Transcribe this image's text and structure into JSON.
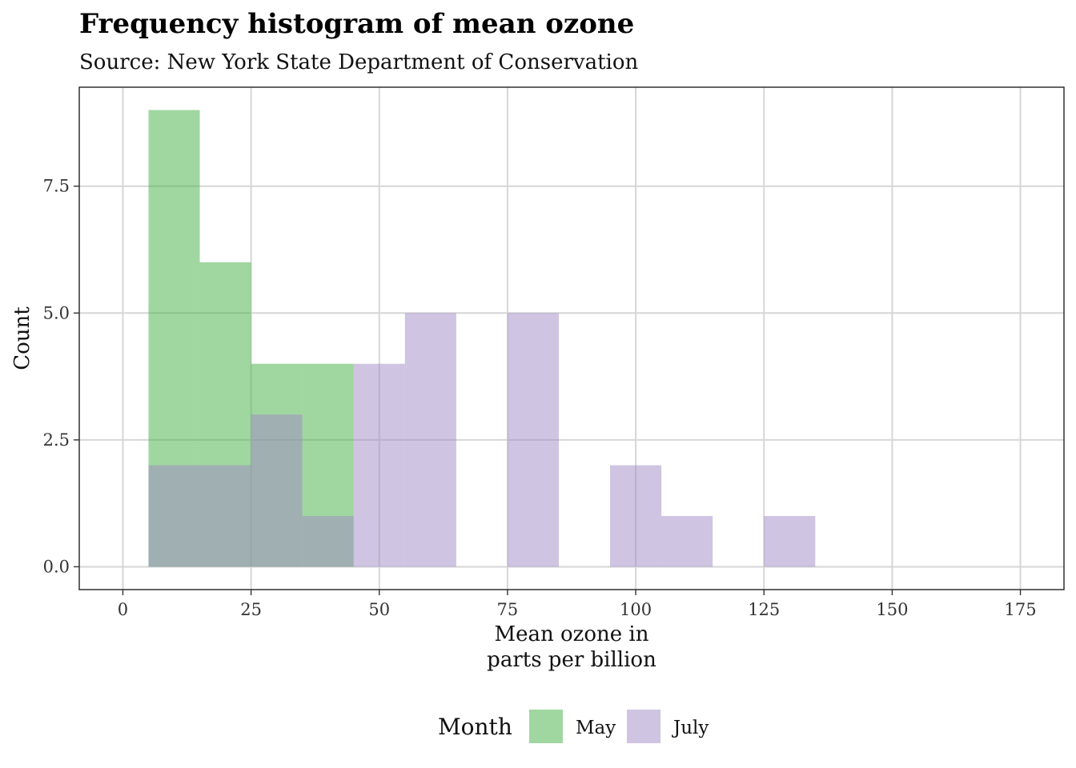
{
  "chart_data": {
    "type": "bar",
    "subtype": "histogram",
    "title": "Frequency histogram of mean ozone",
    "subtitle": "Source: New York State Department of Conservation",
    "xlabel": "Mean ozone in\nparts per billion",
    "ylabel": "Count",
    "xlim": [
      -8.5,
      183.5
    ],
    "ylim": [
      -0.45,
      9.45
    ],
    "x_ticks": [
      0,
      25,
      50,
      75,
      100,
      125,
      150,
      175
    ],
    "x_tick_labels": [
      "0",
      "25",
      "50",
      "75",
      "100",
      "125",
      "150",
      "175"
    ],
    "y_ticks": [
      0,
      2.5,
      5,
      7.5
    ],
    "y_tick_labels": [
      "0.0",
      "2.5",
      "5.0",
      "7.5"
    ],
    "bin_width": 10,
    "bin_starts": [
      5,
      15,
      25,
      35,
      45,
      55,
      65,
      75,
      85,
      95,
      105,
      115,
      125
    ],
    "series": [
      {
        "name": "May",
        "color": "#41b041",
        "opacity": 0.5,
        "values": [
          9,
          6,
          4,
          4,
          0,
          0,
          0,
          0,
          0,
          0,
          0,
          0,
          0
        ]
      },
      {
        "name": "July",
        "color": "#a08ac4",
        "opacity": 0.5,
        "values": [
          2,
          2,
          3,
          1,
          4,
          5,
          0,
          5,
          0,
          2,
          1,
          0,
          1
        ]
      }
    ],
    "grid": true,
    "legend": {
      "title": "Month",
      "position": "bottom",
      "items": [
        "May",
        "July"
      ]
    }
  }
}
